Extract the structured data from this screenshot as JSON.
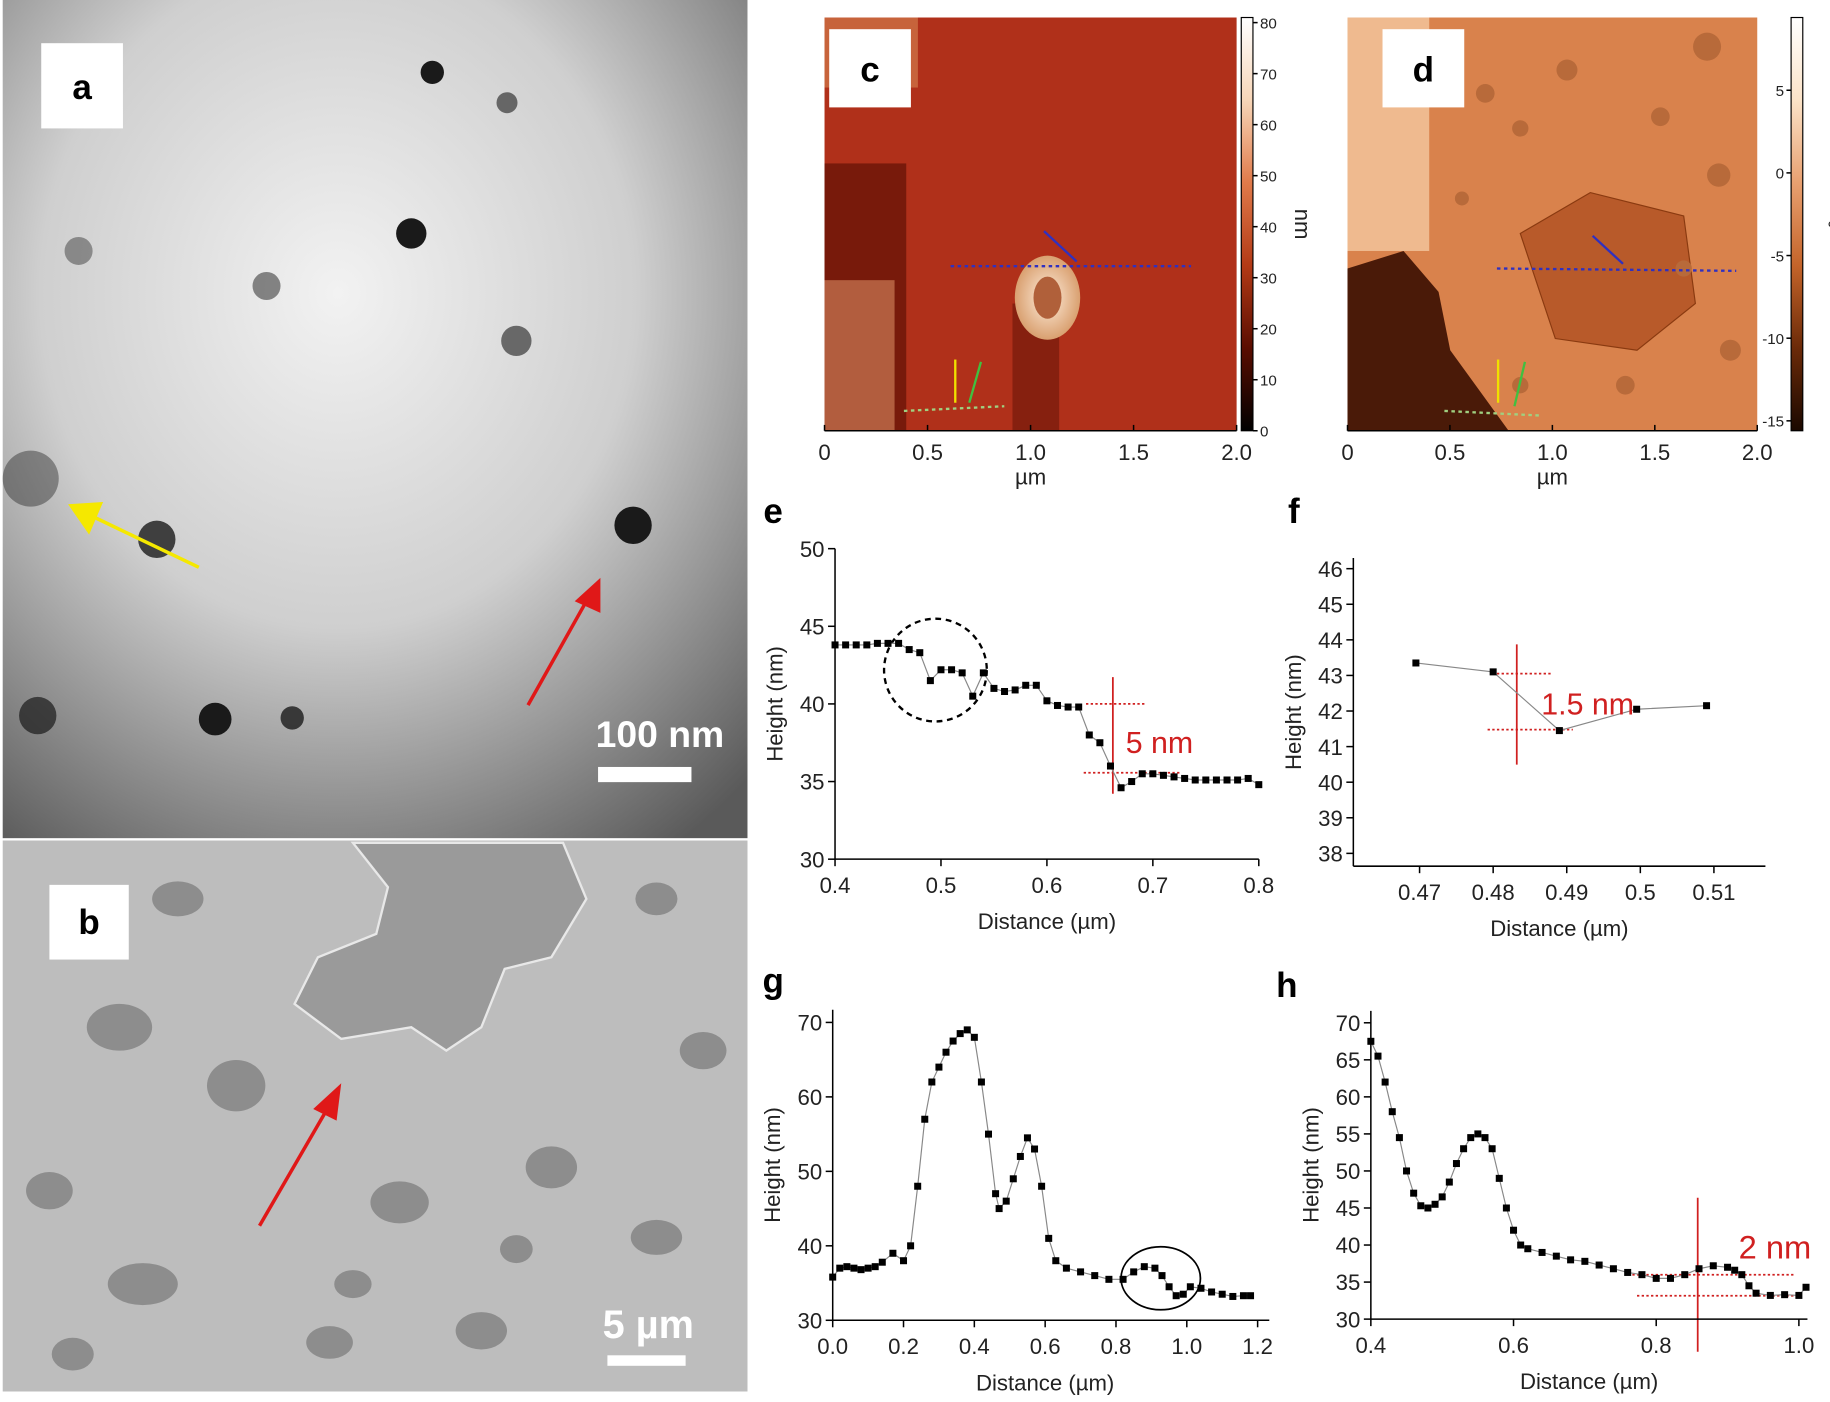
{
  "panels": {
    "a": {
      "label": "a",
      "scale_bar": "100 nm"
    },
    "b": {
      "label": "b",
      "scale_bar": "5 µm"
    }
  },
  "chart_data": [
    {
      "type": "afm-image",
      "label": "c",
      "xlabel": "µm",
      "xlim": [
        0,
        2
      ],
      "xticks": [
        0,
        0.5,
        {
          "value": 1,
          "label": "1.0"
        },
        1.5,
        {
          "value": 2,
          "label": "2.0"
        }
      ],
      "clim": [
        0,
        81
      ],
      "cticks": [
        0,
        10,
        20,
        30,
        40,
        50,
        60,
        70,
        80
      ],
      "colorbar_label": "nm",
      "colormap": [
        "#000000",
        "#5a0d00",
        "#b33a16",
        "#e07a4a",
        "#f7d6b8",
        "#ffffff"
      ]
    },
    {
      "type": "afm-image",
      "label": "d",
      "xlabel": "µm",
      "xlim": [
        0,
        2
      ],
      "xticks": [
        0,
        0.5,
        {
          "value": 1,
          "label": "1.0"
        },
        1.5,
        {
          "value": 2,
          "label": "2.0"
        }
      ],
      "clim": [
        -15.6,
        9.4
      ],
      "cticks": [
        -15,
        -10,
        -5,
        0,
        5
      ],
      "colorbar_label": "°",
      "colormap": [
        "#1a0800",
        "#6b2a08",
        "#c4642a",
        "#e8a070",
        "#fbe3c8",
        "#ffffff"
      ]
    },
    {
      "type": "line",
      "label": "e",
      "xlabel": "Distance (µm)",
      "ylabel": "Height (nm)",
      "color": "#000000",
      "xlim": [
        0.4,
        0.8
      ],
      "ylim": [
        30,
        50
      ],
      "xticks": [
        0.4,
        0.5,
        0.6,
        0.7,
        0.8
      ],
      "yticks": [
        30,
        35,
        40,
        45,
        50
      ],
      "x": [
        0.4,
        0.41,
        0.42,
        0.43,
        0.44,
        0.45,
        0.46,
        0.47,
        0.48,
        0.49,
        0.5,
        0.51,
        0.52,
        0.53,
        0.54,
        0.55,
        0.56,
        0.57,
        0.58,
        0.59,
        0.6,
        0.61,
        0.62,
        0.63,
        0.64,
        0.65,
        0.66,
        0.67,
        0.68,
        0.69,
        0.7,
        0.71,
        0.72,
        0.73,
        0.74,
        0.75,
        0.76,
        0.77,
        0.78,
        0.79,
        0.8
      ],
      "values": [
        43.8,
        43.8,
        43.8,
        43.8,
        43.9,
        43.9,
        43.9,
        43.5,
        43.3,
        41.5,
        42.2,
        42.2,
        42.0,
        40.5,
        42.0,
        41.0,
        40.8,
        40.9,
        41.2,
        41.2,
        40.2,
        39.9,
        39.8,
        39.8,
        38.0,
        37.5,
        36.0,
        34.6,
        35.0,
        35.5,
        35.5,
        35.4,
        35.3,
        35.2,
        35.1,
        35.1,
        35.1,
        35.1,
        35.1,
        35.2,
        34.8
      ],
      "annotations": [
        "5 nm"
      ]
    },
    {
      "type": "line",
      "label": "f",
      "xlabel": "Distance (µm)",
      "ylabel": "Height (nm)",
      "color": "#000000",
      "xlim": [
        0.461,
        0.517
      ],
      "ylim": [
        37.64,
        46.3
      ],
      "xticks": [
        0.47,
        0.48,
        0.49,
        0.5,
        0.51
      ],
      "yticks": [
        38,
        39,
        40,
        41,
        42,
        43,
        44,
        45,
        46
      ],
      "x": [
        0.4695,
        0.48,
        0.489,
        0.4995,
        0.509
      ],
      "values": [
        43.35,
        43.1,
        41.45,
        42.05,
        42.15
      ],
      "annotations": [
        "1.5 nm"
      ]
    },
    {
      "type": "line",
      "label": "g",
      "xlabel": "Distance (µm)",
      "ylabel": "Height (nm)",
      "color": "#000000",
      "xlim": [
        0,
        1.2
      ],
      "ylim": [
        30,
        71.7
      ],
      "xticks": [
        {
          "value": 0,
          "label": "0.0"
        },
        0.2,
        0.4,
        0.6,
        0.8,
        {
          "value": 1,
          "label": "1.0"
        },
        1.2
      ],
      "yticks": [
        30,
        40,
        50,
        60,
        70
      ],
      "x": [
        0,
        0.02,
        0.04,
        0.06,
        0.08,
        0.1,
        0.12,
        0.14,
        0.17,
        0.2,
        0.22,
        0.24,
        0.26,
        0.28,
        0.3,
        0.32,
        0.34,
        0.36,
        0.38,
        0.4,
        0.42,
        0.44,
        0.46,
        0.47,
        0.49,
        0.51,
        0.53,
        0.55,
        0.57,
        0.59,
        0.61,
        0.63,
        0.66,
        0.7,
        0.74,
        0.78,
        0.82,
        0.85,
        0.88,
        0.91,
        0.93,
        0.95,
        0.97,
        0.99,
        1.01,
        1.04,
        1.07,
        1.1,
        1.13,
        1.16,
        1.18
      ],
      "values": [
        35.8,
        37,
        37.2,
        37,
        36.8,
        37,
        37.2,
        37.8,
        39,
        38,
        40,
        48,
        57,
        62,
        64,
        66,
        67.5,
        68.5,
        69,
        68,
        62,
        55,
        47,
        45,
        46,
        49,
        52,
        54.5,
        53,
        48,
        41,
        38,
        37,
        36.5,
        36,
        35.5,
        35.5,
        36.5,
        37.2,
        37,
        36,
        34.5,
        33.3,
        33.5,
        34.5,
        34.3,
        33.8,
        33.5,
        33.2,
        33.3,
        33.3
      ]
    },
    {
      "type": "line",
      "label": "h",
      "xlabel": "Distance (µm)",
      "ylabel": "Height (nm)",
      "color": "#000000",
      "xlim": [
        0.4,
        1.012
      ],
      "ylim": [
        30,
        71.6
      ],
      "xticks": [
        0.4,
        0.6,
        0.8,
        {
          "value": 1,
          "label": "1.0"
        }
      ],
      "yticks": [
        30,
        35,
        40,
        45,
        50,
        55,
        60,
        65,
        70
      ],
      "x": [
        0.4,
        0.41,
        0.42,
        0.43,
        0.44,
        0.45,
        0.46,
        0.47,
        0.48,
        0.49,
        0.5,
        0.51,
        0.52,
        0.53,
        0.54,
        0.55,
        0.56,
        0.57,
        0.58,
        0.59,
        0.6,
        0.61,
        0.62,
        0.64,
        0.66,
        0.68,
        0.7,
        0.72,
        0.74,
        0.76,
        0.78,
        0.8,
        0.82,
        0.84,
        0.86,
        0.88,
        0.9,
        0.91,
        0.92,
        0.93,
        0.94,
        0.96,
        0.98,
        1.0,
        1.01
      ],
      "values": [
        67.5,
        65.5,
        62,
        58,
        54.5,
        50,
        47,
        45.3,
        45,
        45.5,
        46.5,
        48.5,
        51,
        53,
        54.5,
        55,
        54.5,
        53,
        49,
        45,
        42,
        40,
        39.5,
        39,
        38.5,
        38,
        37.8,
        37.3,
        36.8,
        36.3,
        36,
        35.5,
        35.5,
        36,
        36.8,
        37.2,
        37,
        36.6,
        36,
        34.5,
        33.5,
        33.2,
        33.3,
        33.2,
        34.3
      ],
      "annotations": [
        "2 nm"
      ]
    }
  ]
}
